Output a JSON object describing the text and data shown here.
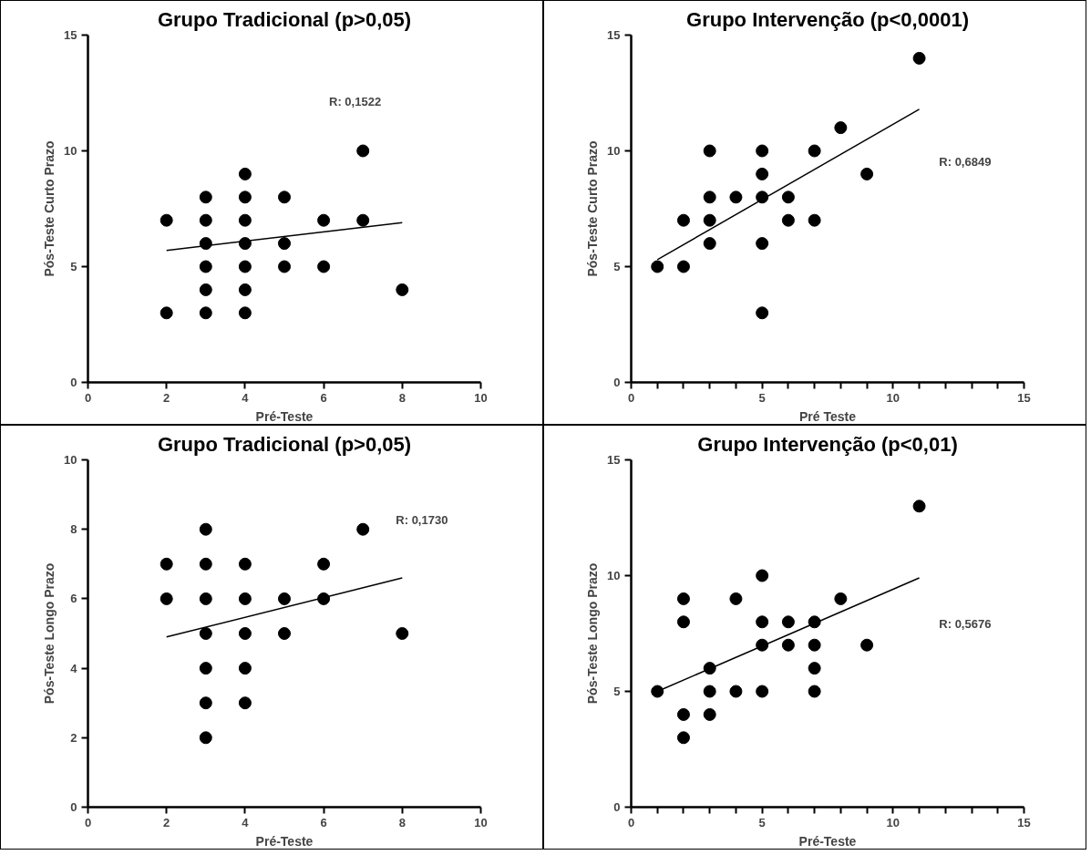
{
  "chart_data": [
    {
      "type": "scatter",
      "title": "Grupo Tradicional (p>0,05)",
      "xlabel": "Pré-Teste",
      "ylabel": "Pós-Teste Curto Prazo",
      "xlim": [
        0,
        10
      ],
      "ylim": [
        0,
        15
      ],
      "xticks": [
        0,
        2,
        4,
        6,
        8,
        10
      ],
      "yticks": [
        0,
        5,
        10,
        15
      ],
      "grid": false,
      "marker": "circle",
      "annotations": [
        "R: 0,1522"
      ],
      "series": [
        {
          "color": "#000000",
          "x": [
            2,
            2,
            3,
            3,
            3,
            3,
            3,
            3,
            4,
            4,
            4,
            4,
            4,
            4,
            4,
            5,
            5,
            5,
            6,
            6,
            7,
            7,
            8
          ],
          "values": [
            7,
            3,
            8,
            7,
            6,
            5,
            4,
            3,
            9,
            8,
            7,
            6,
            5,
            4,
            3,
            8,
            6,
            5,
            7,
            5,
            10,
            7,
            4
          ]
        },
        {
          "type": "line",
          "marker": "none",
          "color": "#000000",
          "x": [
            2,
            8
          ],
          "values": [
            5.7,
            6.9
          ]
        }
      ]
    },
    {
      "type": "scatter",
      "title": "Grupo Intervenção (p<0,0001)",
      "xlabel": "Pré Teste",
      "ylabel": "Pós-Teste Curto Prazo",
      "xlim": [
        0,
        15
      ],
      "ylim": [
        0,
        15
      ],
      "xticks": [
        0,
        {
          "value": 1,
          "label": null
        },
        {
          "value": 2,
          "label": null
        },
        {
          "value": 3,
          "label": null
        },
        {
          "value": 4,
          "label": null
        },
        5,
        {
          "value": 6,
          "label": null
        },
        {
          "value": 7,
          "label": null
        },
        {
          "value": 8,
          "label": null
        },
        {
          "value": 9,
          "label": null
        },
        10,
        {
          "value": 11,
          "label": null
        },
        {
          "value": 12,
          "label": null
        },
        {
          "value": 13,
          "label": null
        },
        {
          "value": 14,
          "label": null
        },
        15
      ],
      "yticks": [
        0,
        5,
        10,
        15
      ],
      "grid": false,
      "marker": "circle",
      "annotations": [
        "R: 0,6849"
      ],
      "series": [
        {
          "color": "#000000",
          "x": [
            1,
            2,
            2,
            3,
            3,
            3,
            3,
            4,
            5,
            5,
            5,
            5,
            5,
            6,
            6,
            7,
            7,
            8,
            9,
            11
          ],
          "values": [
            5,
            7,
            5,
            10,
            8,
            7,
            6,
            8,
            10,
            9,
            8,
            6,
            3,
            8,
            7,
            10,
            7,
            11,
            9,
            14
          ]
        },
        {
          "type": "line",
          "marker": "none",
          "color": "#000000",
          "x": [
            1,
            11
          ],
          "values": [
            5.3,
            11.8
          ]
        }
      ]
    },
    {
      "type": "scatter",
      "title": "Grupo Tradicional (p>0,05)",
      "xlabel": "Pré-Teste",
      "ylabel": "Pós-Teste Longo Prazo",
      "xlim": [
        0,
        10
      ],
      "ylim": [
        0,
        10
      ],
      "xticks": [
        0,
        2,
        4,
        6,
        8,
        10
      ],
      "yticks": [
        0,
        2,
        4,
        6,
        8,
        10
      ],
      "grid": false,
      "marker": "circle",
      "annotations": [
        "R: 0,1730"
      ],
      "series": [
        {
          "color": "#000000",
          "x": [
            2,
            2,
            3,
            3,
            3,
            3,
            3,
            3,
            3,
            4,
            4,
            4,
            4,
            4,
            5,
            5,
            6,
            6,
            7,
            8
          ],
          "values": [
            7,
            6,
            8,
            7,
            6,
            5,
            4,
            3,
            2,
            7,
            6,
            5,
            4,
            3,
            6,
            5,
            7,
            6,
            8,
            5
          ]
        },
        {
          "type": "line",
          "marker": "none",
          "color": "#000000",
          "x": [
            2,
            8
          ],
          "values": [
            4.9,
            6.6
          ]
        }
      ]
    },
    {
      "type": "scatter",
      "title": "Grupo Intervenção (p<0,01)",
      "xlabel": "Pré-Teste",
      "ylabel": "Pós-Teste Longo Prazo",
      "xlim": [
        0,
        15
      ],
      "ylim": [
        0,
        15
      ],
      "xticks": [
        0,
        {
          "value": 1,
          "label": null
        },
        {
          "value": 2,
          "label": null
        },
        {
          "value": 3,
          "label": null
        },
        {
          "value": 4,
          "label": null
        },
        5,
        {
          "value": 6,
          "label": null
        },
        {
          "value": 7,
          "label": null
        },
        {
          "value": 8,
          "label": null
        },
        {
          "value": 9,
          "label": null
        },
        10,
        {
          "value": 11,
          "label": null
        },
        {
          "value": 12,
          "label": null
        },
        {
          "value": 13,
          "label": null
        },
        {
          "value": 14,
          "label": null
        },
        15
      ],
      "yticks": [
        0,
        5,
        10,
        15
      ],
      "grid": false,
      "marker": "circle",
      "annotations": [
        "R: 0,5676"
      ],
      "series": [
        {
          "color": "#000000",
          "x": [
            1,
            2,
            2,
            2,
            2,
            3,
            3,
            3,
            4,
            4,
            5,
            5,
            5,
            5,
            6,
            6,
            7,
            7,
            7,
            7,
            8,
            9,
            11
          ],
          "values": [
            5,
            9,
            8,
            4,
            3,
            6,
            5,
            4,
            9,
            5,
            10,
            8,
            7,
            5,
            8,
            7,
            8,
            7,
            6,
            5,
            9,
            7,
            13
          ]
        },
        {
          "type": "line",
          "marker": "none",
          "color": "#000000",
          "x": [
            1,
            11
          ],
          "values": [
            5.0,
            9.9
          ]
        }
      ]
    }
  ]
}
